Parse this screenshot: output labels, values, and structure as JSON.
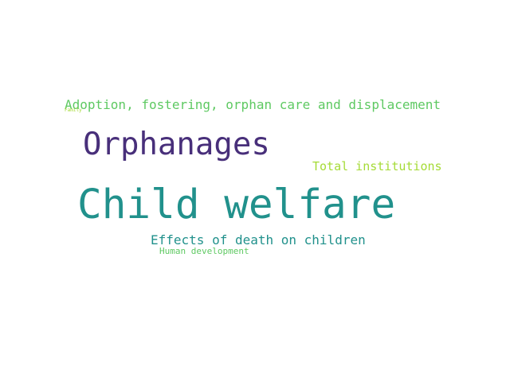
{
  "words": [
    {
      "text": "Child welfare",
      "color": "#21918c"
    },
    {
      "text": "Orphanages",
      "color": "#482f7a"
    },
    {
      "text": "Adoption, fostering, orphan care and displacement",
      "color": "#5ec962"
    },
    {
      "text": "Effects of death on children",
      "color": "#21918c"
    },
    {
      "text": "Total institutions",
      "color": "#a5db36"
    },
    {
      "text": "Human development",
      "color": "#5ec962"
    },
    {
      "text": "Family",
      "color": "#a5db36"
    }
  ]
}
